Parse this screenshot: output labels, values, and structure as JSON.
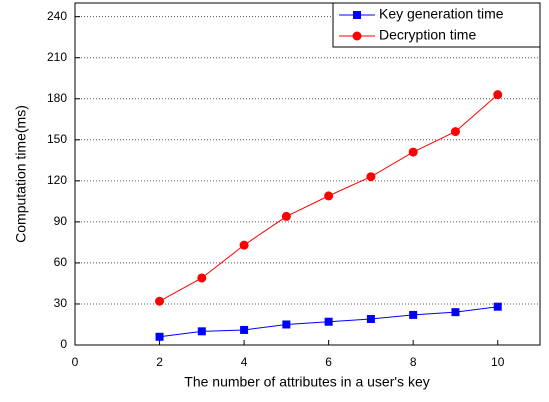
{
  "chart_data": {
    "type": "line",
    "x_label": "The number of attributes  in a user's key",
    "y_label": "Computation time(ms)",
    "x": [
      2,
      3,
      4,
      5,
      6,
      7,
      8,
      9,
      10
    ],
    "series": [
      {
        "name": "Key generation time",
        "color": "#0000ff",
        "marker": "square",
        "values": [
          6,
          10,
          11,
          15,
          17,
          19,
          22,
          24,
          28
        ]
      },
      {
        "name": "Decryption time",
        "color": "#ff0000",
        "marker": "circle",
        "values": [
          32,
          49,
          73,
          94,
          109,
          123,
          141,
          156,
          183
        ]
      }
    ],
    "xlim": [
      0,
      11
    ],
    "xticks": [
      0,
      2,
      4,
      6,
      8,
      10
    ],
    "ylim": [
      0,
      250
    ],
    "yticks": [
      0,
      30,
      60,
      90,
      120,
      150,
      180,
      210,
      240
    ],
    "grid": true,
    "legend": "upper right"
  }
}
